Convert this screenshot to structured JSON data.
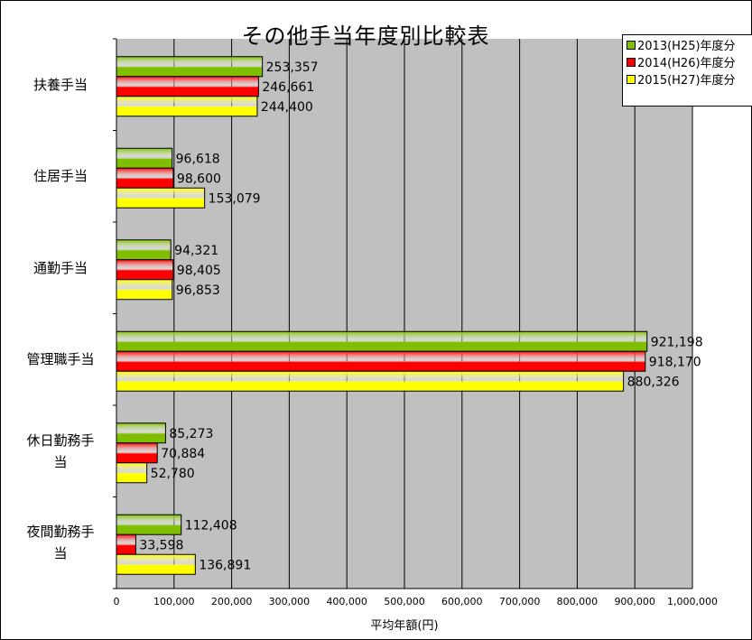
{
  "chart_data": {
    "type": "bar",
    "orientation": "horizontal",
    "title": "その他手当年度別比較表",
    "xlabel": "平均年額(円)",
    "ylabel": "",
    "xlim": [
      0,
      1000000
    ],
    "x_ticks": [
      "0",
      "100,000",
      "200,000",
      "300,000",
      "400,000",
      "500,000",
      "600,000",
      "700,000",
      "800,000",
      "900,000",
      "1,000,000"
    ],
    "categories": [
      "扶養手当",
      "住居手当",
      "通勤手当",
      "管理職手当",
      "休日勤務手\n当",
      "夜間勤務手\n当"
    ],
    "series": [
      {
        "name": "2013(H25)年度分",
        "color": "#7fbf00",
        "values": [
          253357,
          96618,
          94321,
          921198,
          85273,
          112408
        ]
      },
      {
        "name": "2014(H26)年度分",
        "color": "#ff0000",
        "values": [
          246661,
          98600,
          98405,
          918170,
          70884,
          33598
        ]
      },
      {
        "name": "2015(H27)年度分",
        "color": "#ffff00",
        "values": [
          244400,
          153079,
          96853,
          880326,
          52780,
          136891
        ]
      }
    ],
    "data_labels": [
      [
        "253,357",
        "96,618",
        "94,321",
        "921,198",
        "85,273",
        "112,408"
      ],
      [
        "246,661",
        "98,600",
        "98,405",
        "918,170",
        "70,884",
        "33,598"
      ],
      [
        "244,400",
        "153,079",
        "96,853",
        "880,326",
        "52,780",
        "136,891"
      ]
    ],
    "grid": true,
    "legend_position": "top-right",
    "plot_background": "#c0c0c0"
  }
}
